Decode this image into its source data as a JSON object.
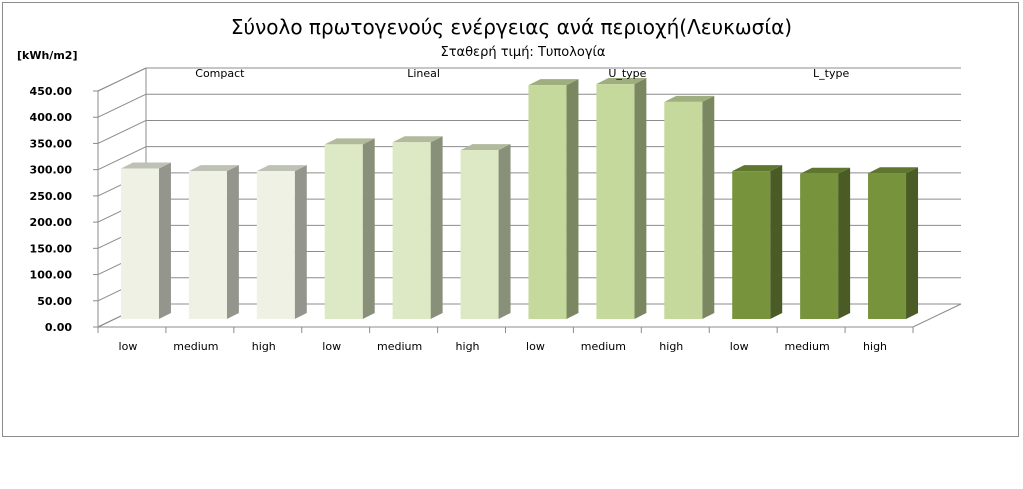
{
  "chart_data": {
    "type": "bar",
    "title": "Σύνολο πρωτογενούς ενέργειας ανά περιοχή(Λευκωσία)",
    "subtitle": "Σταθερή τιμή: Τυπολογία",
    "ylabel": "[kWh/m2]",
    "ylim": [
      0,
      450
    ],
    "yticks": [
      "0.00",
      "50.00",
      "100.00",
      "150.00",
      "200.00",
      "250.00",
      "300.00",
      "350.00",
      "400.00",
      "450.00"
    ],
    "categories": [
      "low",
      "medium",
      "high",
      "low",
      "medium",
      "high",
      "low",
      "medium",
      "high",
      "low",
      "medium",
      "high"
    ],
    "groups": [
      {
        "name": "Compact",
        "values": [
          287,
          282,
          282
        ]
      },
      {
        "name": "Lineal",
        "values": [
          333,
          337,
          322
        ]
      },
      {
        "name": "U_type",
        "values": [
          446,
          448,
          414
        ]
      },
      {
        "name": "L_type",
        "values": [
          282,
          277,
          278
        ]
      }
    ],
    "colors": {
      "Compact": "#eef1e3",
      "Lineal": "#dde8c4",
      "U_type": "#c6d99d",
      "L_type": "#77933c"
    },
    "grid": true,
    "style": "3d-column"
  }
}
